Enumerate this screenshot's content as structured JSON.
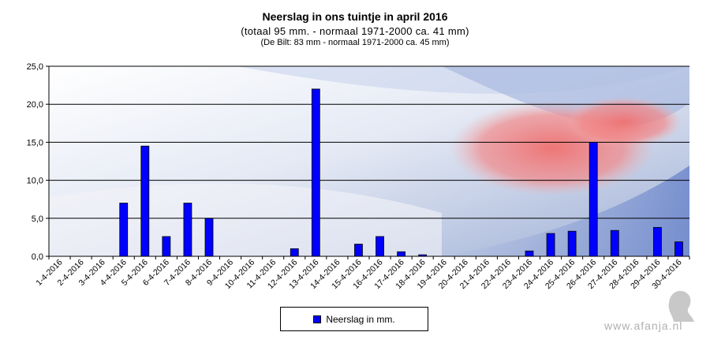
{
  "chart_data": {
    "type": "bar",
    "title": "Neerslag in ons tuintje in april 2016",
    "subtitle": "(totaal 95 mm. - normaal 1971-2000 ca. 41 mm)",
    "subtitle2": "(De Bilt: 83 mm - normaal 1971-2000 ca. 45 mm)",
    "categories": [
      "1-4-2016",
      "2-4-2016",
      "3-4-2016",
      "4-4-2016",
      "5-4-2016",
      "6-4-2016",
      "7-4-2016",
      "8-4-2016",
      "9-4-2016",
      "10-4-2016",
      "11-4-2016",
      "12-4-2016",
      "13-4-2016",
      "14-4-2016",
      "15-4-2016",
      "16-4-2016",
      "17-4-2016",
      "18-4-2016",
      "19-4-2016",
      "20-4-2016",
      "21-4-2016",
      "22-4-2016",
      "23-4-2016",
      "24-4-2016",
      "25-4-2016",
      "26-4-2016",
      "27-4-2016",
      "28-4-2016",
      "29-4-2016",
      "30-4-2016"
    ],
    "series": [
      {
        "name": "Neerslag in mm.",
        "values": [
          0,
          0,
          0,
          7.0,
          14.5,
          2.6,
          7.0,
          5.0,
          0,
          0,
          0,
          1.0,
          22.0,
          0,
          1.6,
          2.6,
          0.6,
          0.2,
          0,
          0,
          0,
          0,
          0.7,
          3.0,
          3.3,
          15.0,
          3.4,
          0,
          3.8,
          1.9
        ]
      }
    ],
    "ylim": [
      0,
      25
    ],
    "yticks": [
      "0,0",
      "5,0",
      "10,0",
      "15,0",
      "20,0",
      "25,0"
    ],
    "ytick_values": [
      0,
      5,
      10,
      15,
      20,
      25
    ],
    "grid": true,
    "legend_position": "bottom",
    "bar_color": "#0000ff"
  },
  "watermark": "www.afanja.nl"
}
